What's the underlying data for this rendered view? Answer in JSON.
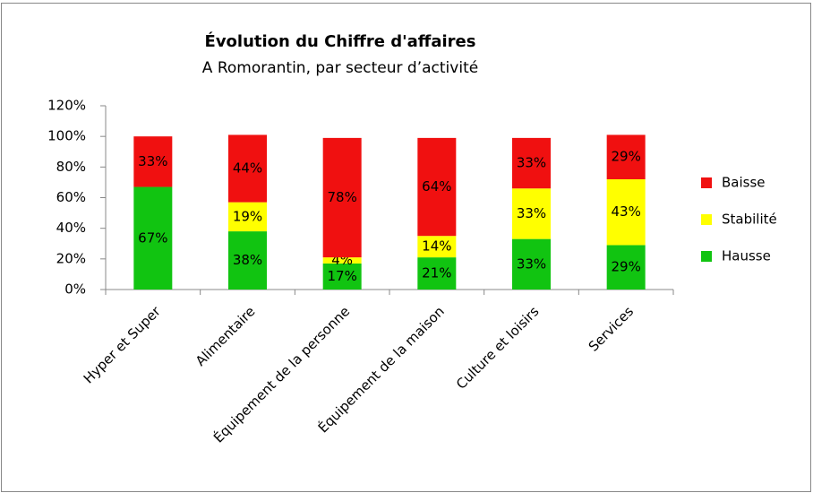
{
  "chart_data": {
    "type": "stacked_bar",
    "title": "Évolution du Chiffre d'affaires",
    "subtitle": "A Romorantin, par secteur d’activité",
    "categories": [
      "Hyper et Super",
      "Alimentaire",
      "Équipement de la personne",
      "Équipement de la maison",
      "Culture et loisirs",
      "Services"
    ],
    "series": [
      {
        "name": "Hausse",
        "color": "#11c411",
        "values": [
          67,
          38,
          17,
          21,
          33,
          29
        ],
        "value_labels": [
          "67%",
          "38%",
          "17%",
          "21%",
          "33%",
          "29%"
        ]
      },
      {
        "name": "Stabilité",
        "color": "#ffff00",
        "values": [
          null,
          19,
          4,
          14,
          33,
          43
        ],
        "value_labels": [
          null,
          "19%",
          "4%",
          "14%",
          "33%",
          "43%"
        ]
      },
      {
        "name": "Baisse",
        "color": "#f01010",
        "values": [
          33,
          44,
          78,
          64,
          33,
          29
        ],
        "value_labels": [
          "33%",
          "44%",
          "78%",
          "64%",
          "33%",
          "29%"
        ]
      }
    ],
    "ylim": [
      0,
      120
    ],
    "yticks": [
      {
        "value": 0,
        "label": "0%"
      },
      {
        "value": 20,
        "label": "20%"
      },
      {
        "value": 40,
        "label": "40%"
      },
      {
        "value": 60,
        "label": "60%"
      },
      {
        "value": 80,
        "label": "80%"
      },
      {
        "value": 100,
        "label": "100%"
      },
      {
        "value": 120,
        "label": "120%"
      }
    ],
    "grid": false,
    "legend": "right"
  }
}
